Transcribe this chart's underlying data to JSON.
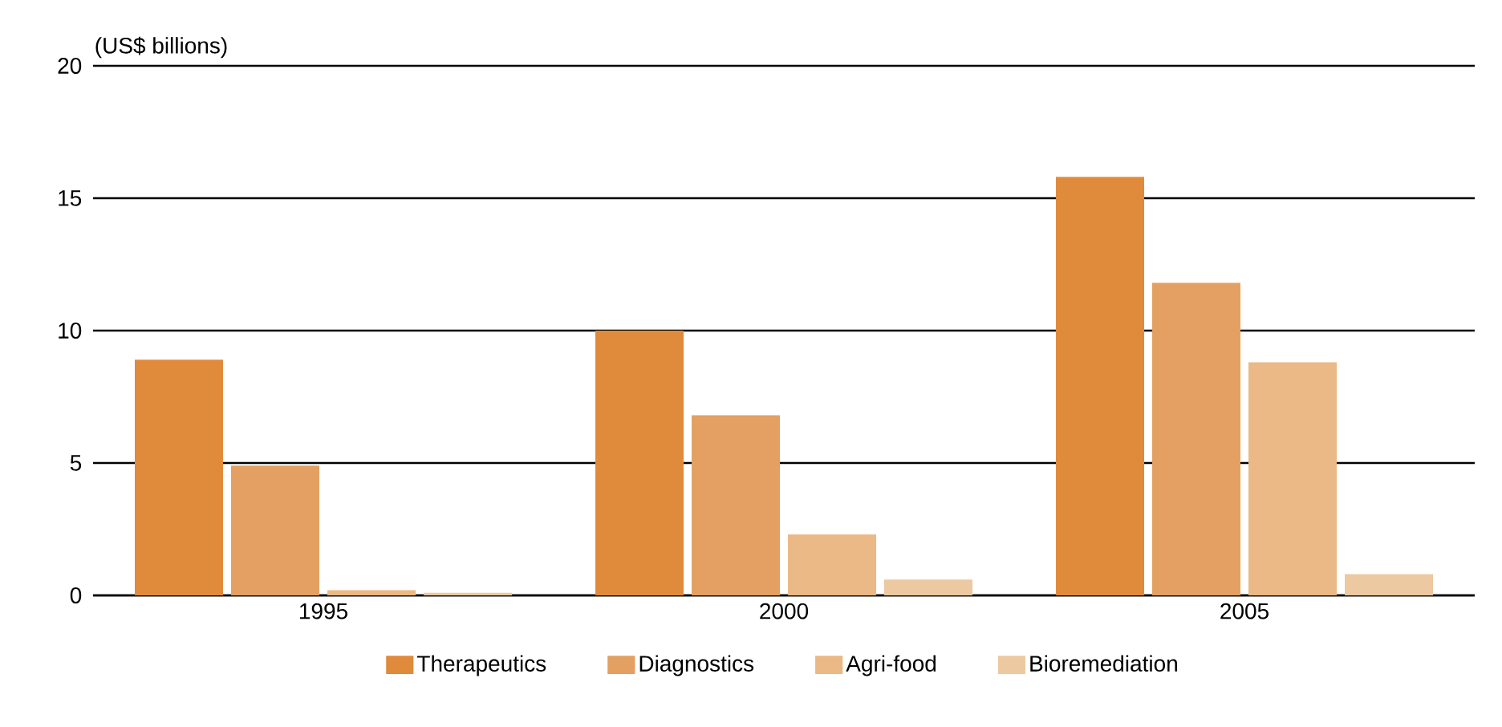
{
  "chart_data": {
    "type": "bar",
    "ylabel": "(US$ billions)",
    "categories": [
      "1995",
      "2000",
      "2005"
    ],
    "series": [
      {
        "name": "Therapeutics",
        "color": "#e08a3c",
        "values": [
          8.9,
          10.0,
          15.8
        ]
      },
      {
        "name": "Diagnostics",
        "color": "#e3a062",
        "values": [
          4.9,
          6.8,
          11.8
        ]
      },
      {
        "name": "Agri-food",
        "color": "#eab985",
        "values": [
          0.2,
          2.3,
          8.8
        ]
      },
      {
        "name": "Bioremediation",
        "color": "#ecc9a0",
        "values": [
          0.1,
          0.6,
          0.8
        ]
      }
    ],
    "ylim": [
      0,
      20
    ],
    "yticks": [
      0,
      5,
      10,
      15,
      20
    ],
    "grid": "y",
    "legend": "bottom"
  }
}
